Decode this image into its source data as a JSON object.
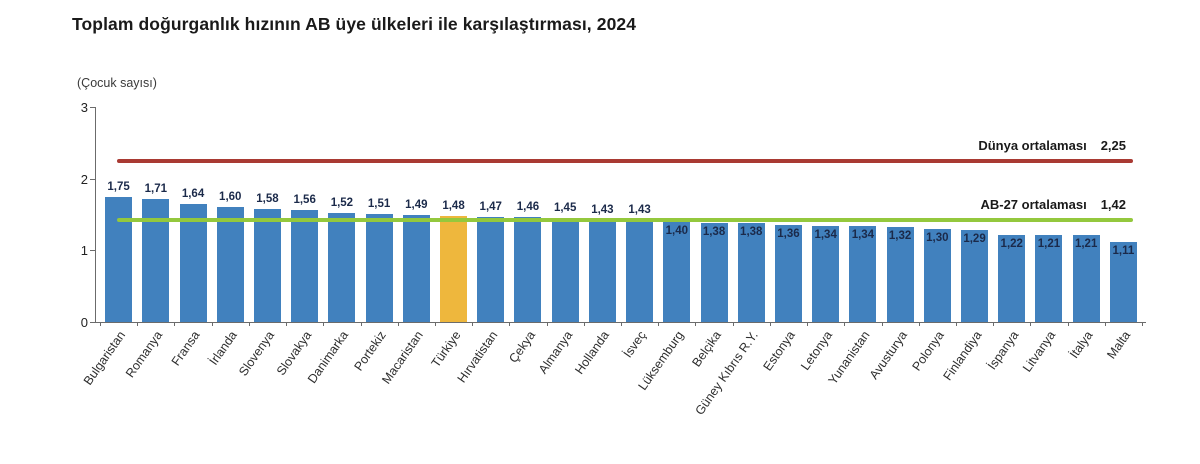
{
  "title": "Toplam doğurganlık hızının AB üye ülkeleri ile karşılaştırması, 2024",
  "chart_data": {
    "type": "bar",
    "title": "Toplam doğurganlık hızının AB üye ülkeleri ile karşılaştırması, 2024",
    "ylabel": "(Çocuk sayısı)",
    "xlabel": "",
    "ylim": [
      0,
      3
    ],
    "yticks": [
      "0",
      "1",
      "2",
      "3"
    ],
    "grid": false,
    "legend_position": "none",
    "categories": [
      "Bulgaristan",
      "Romanya",
      "Fransa",
      "İrlanda",
      "Slovenya",
      "Slovakya",
      "Danimarka",
      "Portekiz",
      "Macaristan",
      "Türkiye",
      "Hırvatistan",
      "Çekya",
      "Almanya",
      "Hollanda",
      "İsveç",
      "Lüksemburg",
      "Belçika",
      "Güney Kıbrıs R.Y.",
      "Estonya",
      "Letonya",
      "Yunanistan",
      "Avusturya",
      "Polonya",
      "Finlandiya",
      "İspanya",
      "Litvanya",
      "İtalya",
      "Malta"
    ],
    "values": [
      1.75,
      1.71,
      1.64,
      1.6,
      1.58,
      1.56,
      1.52,
      1.51,
      1.49,
      1.48,
      1.47,
      1.46,
      1.45,
      1.43,
      1.43,
      1.4,
      1.38,
      1.38,
      1.36,
      1.34,
      1.34,
      1.32,
      1.3,
      1.29,
      1.22,
      1.21,
      1.21,
      1.11
    ],
    "value_labels": [
      "1,75",
      "1,71",
      "1,64",
      "1,60",
      "1,58",
      "1,56",
      "1,52",
      "1,51",
      "1,49",
      "1,48",
      "1,47",
      "1,46",
      "1,45",
      "1,43",
      "1,43",
      "1,40",
      "1,38",
      "1,38",
      "1,36",
      "1,34",
      "1,34",
      "1,32",
      "1,30",
      "1,29",
      "1,22",
      "1,21",
      "1,21",
      "1,11"
    ],
    "highlight_category": "Türkiye",
    "reference_lines": [
      {
        "label": "Dünya ortalaması",
        "value": 2.25,
        "value_label": "2,25",
        "color": "#a93a33"
      },
      {
        "label": "AB-27 ortalaması",
        "value": 1.42,
        "value_label": "1,42",
        "color": "#94c83d"
      }
    ],
    "colors": {
      "bar": "#4181be",
      "highlight_bar": "#eeb73d",
      "value_text": "#1b2a4a",
      "axis": "#6b6b6b"
    }
  }
}
